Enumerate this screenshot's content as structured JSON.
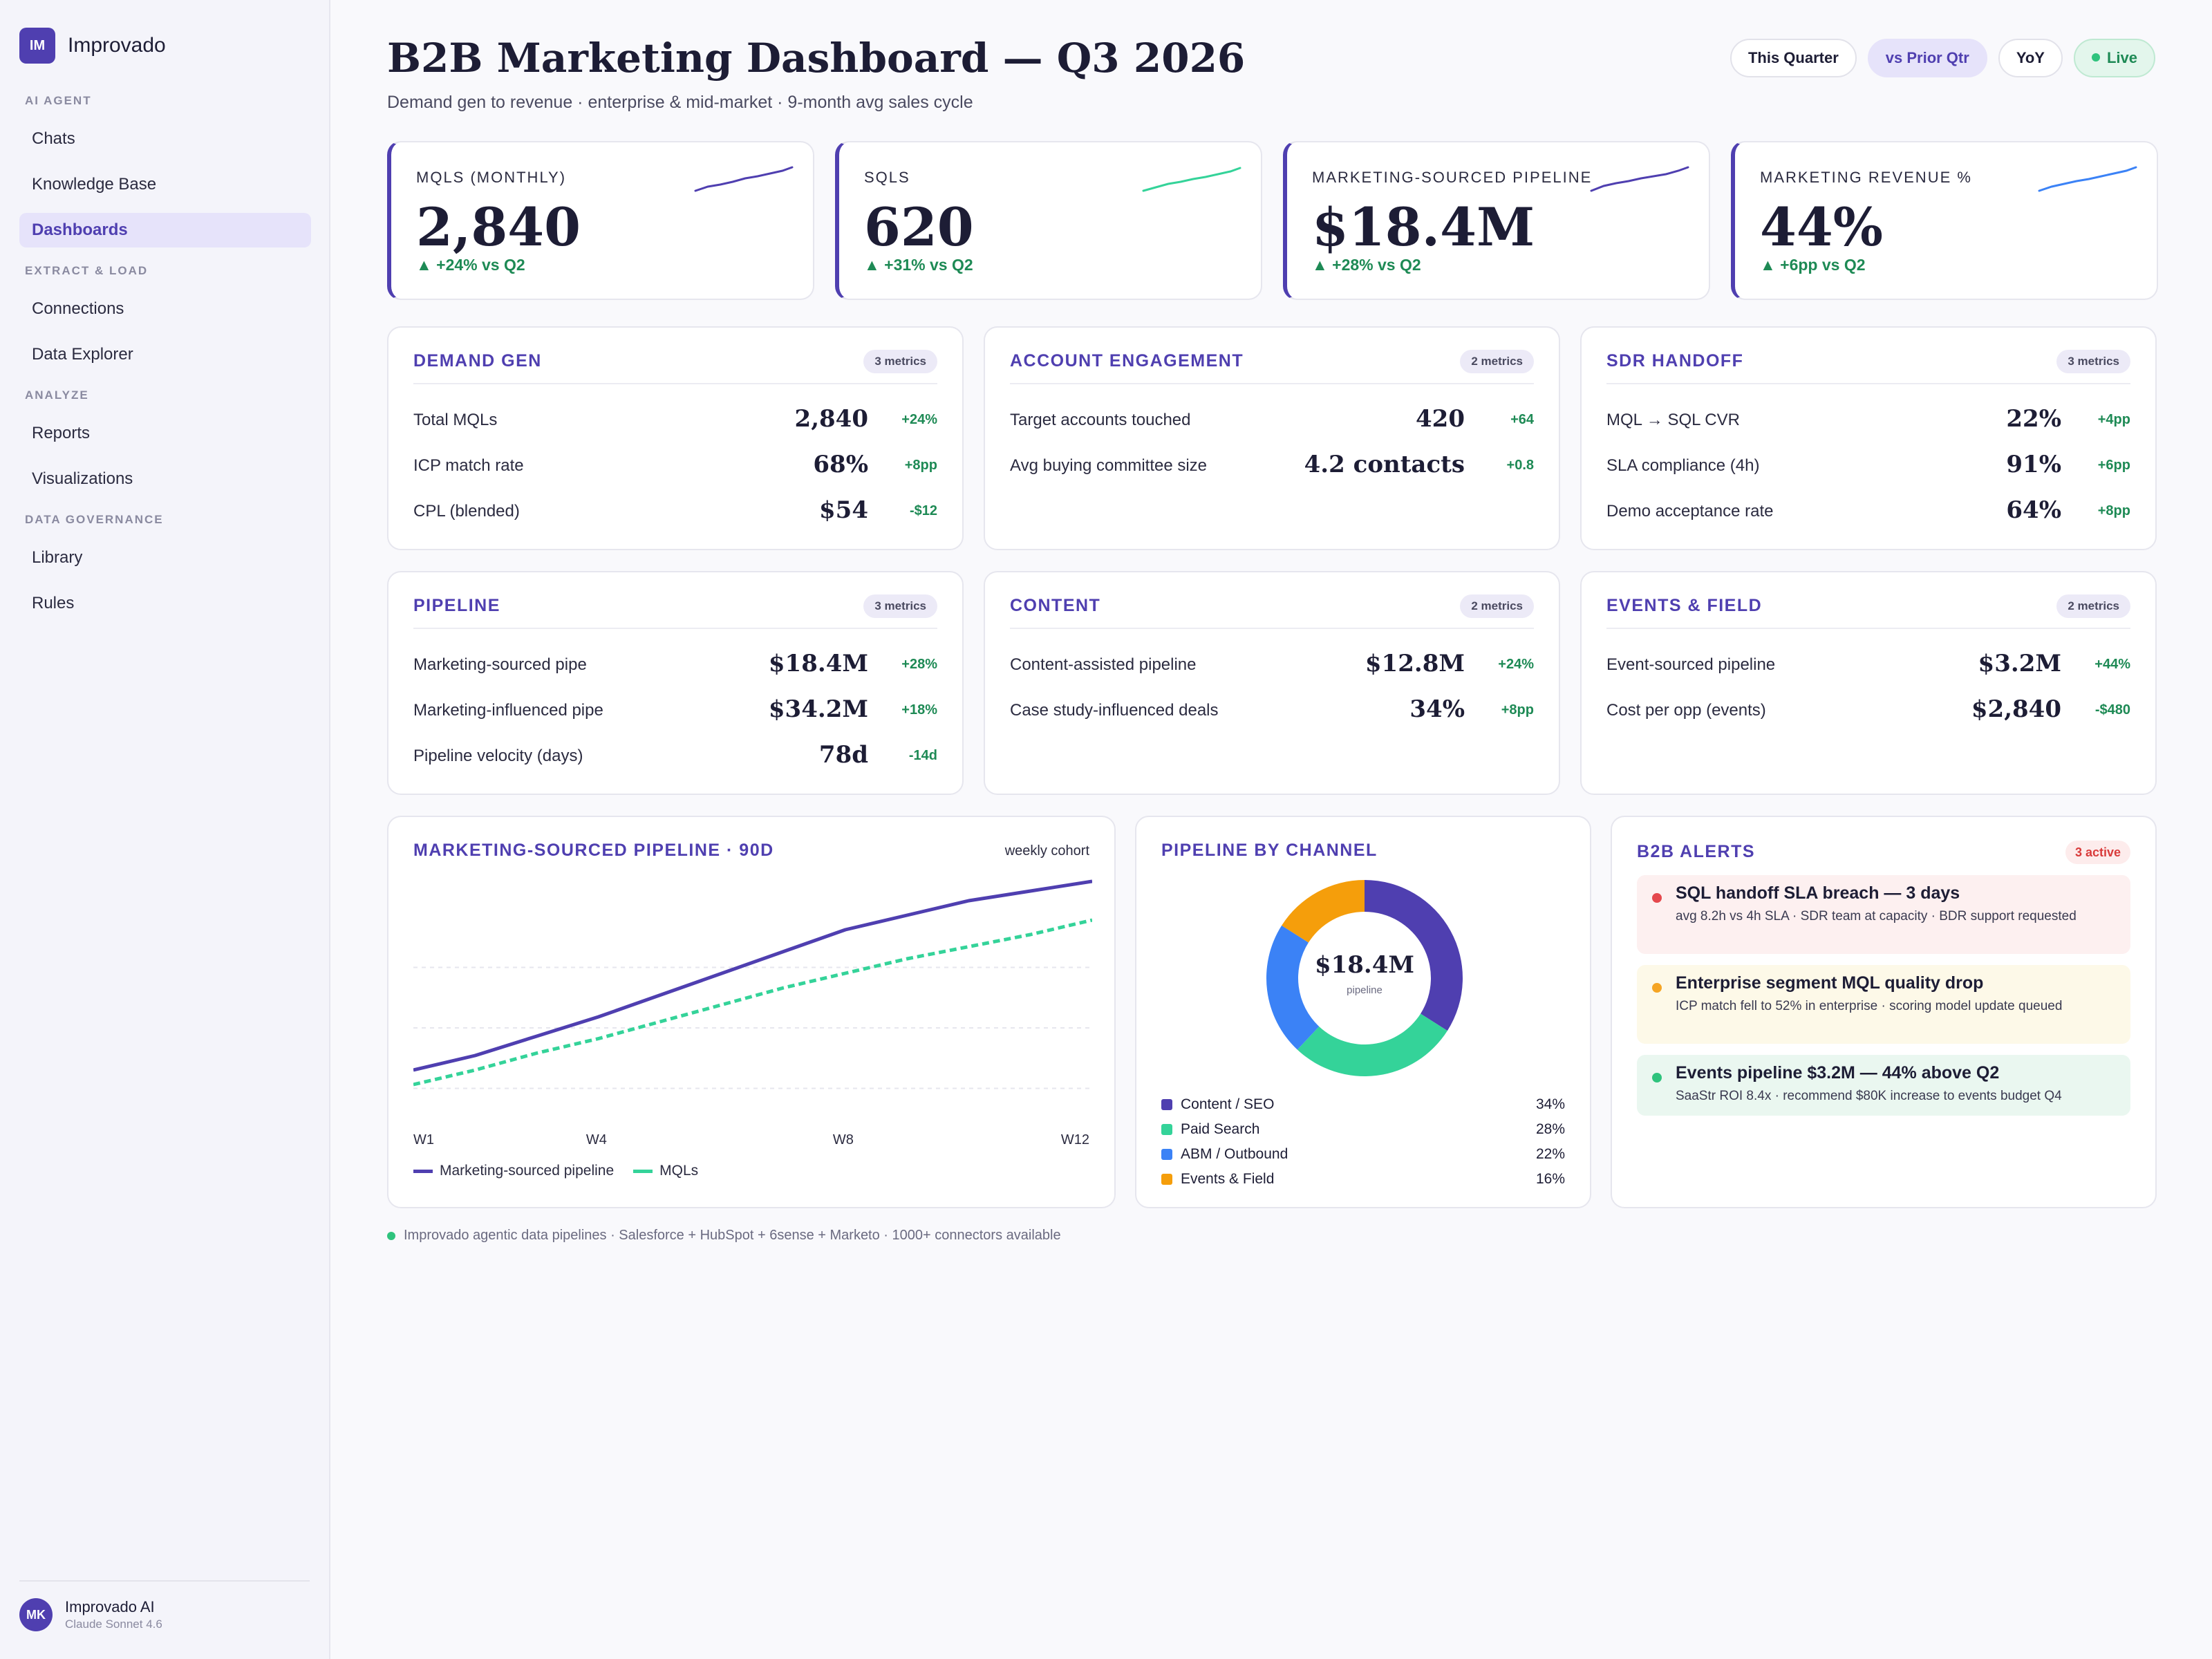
{
  "app": {
    "logo_initials": "IM",
    "name": "Improvado"
  },
  "sidebar": {
    "sections": [
      {
        "label": "AI AGENT",
        "items": [
          {
            "label": "Chats"
          },
          {
            "label": "Knowledge Base"
          },
          {
            "label": "Dashboards",
            "active": true
          }
        ]
      },
      {
        "label": "EXTRACT & LOAD",
        "items": [
          {
            "label": "Connections"
          },
          {
            "label": "Data Explorer"
          }
        ]
      },
      {
        "label": "ANALYZE",
        "items": [
          {
            "label": "Reports"
          },
          {
            "label": "Visualizations"
          }
        ]
      },
      {
        "label": "DATA GOVERNANCE",
        "items": [
          {
            "label": "Library"
          },
          {
            "label": "Rules"
          }
        ]
      }
    ],
    "user": {
      "initials": "MK",
      "name": "Improvado AI",
      "model": "Claude Sonnet 4.6"
    }
  },
  "header": {
    "title": "B2B Marketing Dashboard — Q3 2026",
    "subtitle": "Demand gen to revenue · enterprise & mid-market · 9-month avg sales cycle",
    "pills": {
      "this_quarter": "This Quarter",
      "prior": "vs Prior Qtr",
      "yoy": "YoY",
      "live": "Live"
    }
  },
  "kpis": [
    {
      "label": "MQLS (MONTHLY)",
      "value": "2,840",
      "delta": "▲ +24% vs Q2",
      "spark_color": "#4f3fb0"
    },
    {
      "label": "SQLS",
      "value": "620",
      "delta": "▲ +31% vs Q2",
      "spark_color": "#34d399"
    },
    {
      "label": "MARKETING-SOURCED PIPELINE",
      "value": "$18.4M",
      "delta": "▲ +28% vs Q2",
      "spark_color": "#4f3fb0"
    },
    {
      "label": "MARKETING REVENUE %",
      "value": "44%",
      "delta": "▲ +6pp vs Q2",
      "spark_color": "#3b82f6"
    }
  ],
  "sections": {
    "demand_gen": {
      "title": "DEMAND GEN",
      "badge": "3 metrics",
      "metrics": [
        {
          "label": "Total MQLs",
          "value": "2,840",
          "delta": "+24%"
        },
        {
          "label": "ICP match rate",
          "value": "68%",
          "delta": "+8pp"
        },
        {
          "label": "CPL (blended)",
          "value": "$54",
          "delta": "-$12"
        }
      ]
    },
    "account_engagement": {
      "title": "ACCOUNT ENGAGEMENT",
      "badge": "2 metrics",
      "metrics": [
        {
          "label": "Target accounts touched",
          "value": "420",
          "delta": "+64"
        },
        {
          "label": "Avg buying committee size",
          "value": "4.2 contacts",
          "delta": "+0.8"
        }
      ]
    },
    "sdr_handoff": {
      "title": "SDR HANDOFF",
      "badge": "3 metrics",
      "metrics": [
        {
          "label": "MQL → SQL CVR",
          "value": "22%",
          "delta": "+4pp"
        },
        {
          "label": "SLA compliance (4h)",
          "value": "91%",
          "delta": "+6pp"
        },
        {
          "label": "Demo acceptance rate",
          "value": "64%",
          "delta": "+8pp"
        }
      ]
    },
    "pipeline": {
      "title": "PIPELINE",
      "badge": "3 metrics",
      "metrics": [
        {
          "label": "Marketing-sourced pipe",
          "value": "$18.4M",
          "delta": "+28%"
        },
        {
          "label": "Marketing-influenced pipe",
          "value": "$34.2M",
          "delta": "+18%"
        },
        {
          "label": "Pipeline velocity (days)",
          "value": "78d",
          "delta": "-14d"
        }
      ]
    },
    "content": {
      "title": "CONTENT",
      "badge": "2 metrics",
      "metrics": [
        {
          "label": "Content-assisted pipeline",
          "value": "$12.8M",
          "delta": "+24%"
        },
        {
          "label": "Case study-influenced deals",
          "value": "34%",
          "delta": "+8pp"
        }
      ]
    },
    "events_field": {
      "title": "EVENTS & FIELD",
      "badge": "2 metrics",
      "metrics": [
        {
          "label": "Event-sourced pipeline",
          "value": "$3.2M",
          "delta": "+44%"
        },
        {
          "label": "Cost per opp (events)",
          "value": "$2,840",
          "delta": "-$480"
        }
      ]
    }
  },
  "line_card": {
    "title": "MARKETING-SOURCED PIPELINE · 90D",
    "tag": "weekly cohort"
  },
  "donut_card": {
    "title": "PIPELINE BY CHANNEL",
    "center_value": "$18.4M",
    "center_label": "pipeline"
  },
  "alerts_card": {
    "title": "B2B ALERTS",
    "badge": "3 active",
    "alerts": [
      {
        "title": "SQL handoff SLA breach — 3 days",
        "body": "avg 8.2h vs 4h SLA · SDR team at capacity · BDR support requested",
        "color": "#e5484d",
        "bg": "#fdf0f0"
      },
      {
        "title": "Enterprise segment MQL quality drop",
        "body": "ICP match fell to 52% in enterprise · scoring model update queued",
        "color": "#f5a524",
        "bg": "#fdf9e8"
      },
      {
        "title": "Events pipeline $3.2M — 44% above Q2",
        "body": "SaaStr ROI 8.4x · recommend $80K increase to events budget Q4",
        "color": "#2fc37d",
        "bg": "#eaf7f0"
      }
    ]
  },
  "footer_note": "Improvado agentic data pipelines · Salesforce + HubSpot + 6sense + Marketo · 1000+ connectors available",
  "chart_data": [
    {
      "type": "line",
      "title": "MARKETING-SOURCED PIPELINE · 90D",
      "x": [
        "W1",
        "W2",
        "W3",
        "W4",
        "W5",
        "W6",
        "W7",
        "W8",
        "W9",
        "W10",
        "W11",
        "W12"
      ],
      "tick_labels": [
        "W1",
        "W4",
        "W8",
        "W12"
      ],
      "grid": true,
      "ylim": [
        0,
        100
      ],
      "legend": "bottom-left",
      "series": [
        {
          "name": "Marketing-sourced pipeline",
          "color": "#4f3fb0",
          "dash": false,
          "values": [
            24,
            30,
            38,
            46,
            55,
            64,
            73,
            82,
            88,
            94,
            98,
            102
          ]
        },
        {
          "name": "MQLs",
          "color": "#34d399",
          "dash": true,
          "values": [
            18,
            24,
            31,
            37,
            44,
            51,
            58,
            64,
            70,
            75,
            80,
            86
          ]
        }
      ]
    },
    {
      "type": "pie",
      "title": "PIPELINE BY CHANNEL",
      "legend": "bottom",
      "slices": [
        {
          "name": "Content / SEO",
          "value": 34,
          "label": "34%",
          "color": "#4f3fb0"
        },
        {
          "name": "Paid Search",
          "value": 28,
          "label": "28%",
          "color": "#34d399"
        },
        {
          "name": "ABM / Outbound",
          "value": 22,
          "label": "22%",
          "color": "#3b82f6"
        },
        {
          "name": "Events & Field",
          "value": 16,
          "label": "16%",
          "color": "#f59e0b"
        }
      ]
    }
  ]
}
